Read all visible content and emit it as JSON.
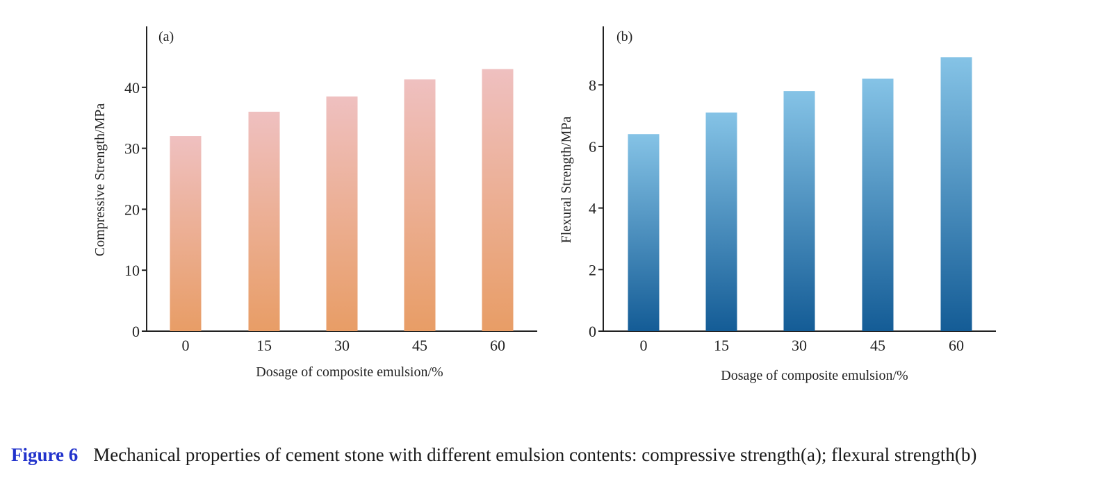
{
  "chart_data": [
    {
      "type": "bar",
      "panel_label": "(a)",
      "categories": [
        "0",
        "15",
        "30",
        "45",
        "60"
      ],
      "values": [
        32,
        36,
        38.5,
        41.3,
        43
      ],
      "xlabel": "Dosage of composite emulsion/%",
      "ylabel": "Compressive Strength/MPa",
      "ylim": [
        0,
        50
      ],
      "yticks": [
        0,
        10,
        20,
        30,
        40
      ],
      "colors": {
        "top": "#efc0c0",
        "bottom": "#e89d66"
      }
    },
    {
      "type": "bar",
      "panel_label": "(b)",
      "categories": [
        "0",
        "15",
        "30",
        "45",
        "60"
      ],
      "values": [
        6.4,
        7.1,
        7.8,
        8.2,
        8.9
      ],
      "xlabel": "Dosage of composite emulsion/%",
      "ylabel": "Flexural Strength/MPa",
      "ylim": [
        0,
        9.9
      ],
      "yticks": [
        0,
        2,
        4,
        6,
        8
      ],
      "colors": {
        "top": "#85c3e6",
        "bottom": "#145c96"
      }
    }
  ],
  "caption": {
    "label": "Figure 6",
    "text": "Mechanical properties of cement stone with different emulsion contents: compressive strength(a); flexural strength(b)"
  }
}
